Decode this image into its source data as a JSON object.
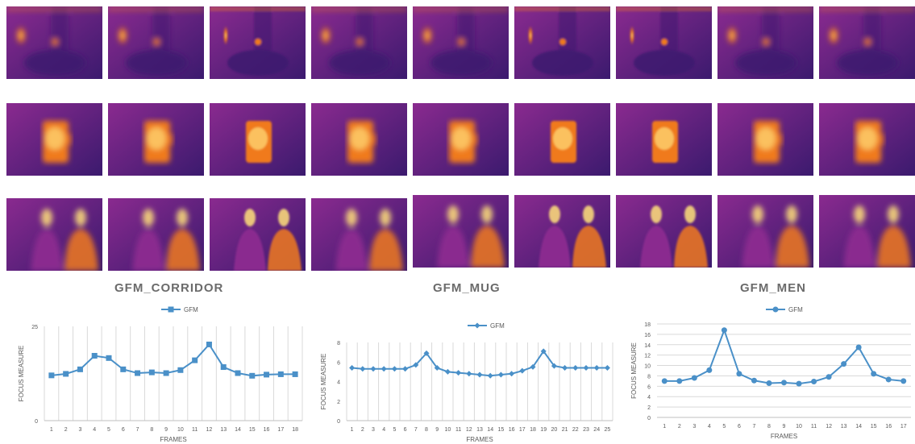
{
  "thermal_rows": [
    {
      "name": "corridor",
      "frames": 9
    },
    {
      "name": "mug",
      "frames": 9
    },
    {
      "name": "men",
      "frames": 9
    }
  ],
  "palette": {
    "background_dark": "#3b1a6e",
    "background_mid": "#8a2a8f",
    "hot": "#f07a1c",
    "hottest": "#ffe07a"
  },
  "series_color": "#4a90c8",
  "chart_data": [
    {
      "type": "line",
      "title": "GFM_CORRIDOR",
      "legend": [
        "GFM"
      ],
      "legend_position": "top",
      "marker": "square",
      "xlabel": "FRAMES",
      "ylabel": "FOCUS MEASURE",
      "categories": [
        "1",
        "2",
        "3",
        "4",
        "5",
        "6",
        "7",
        "8",
        "9",
        "10",
        "11",
        "12",
        "13",
        "14",
        "15",
        "16",
        "17",
        "18"
      ],
      "series": [
        {
          "name": "GFM",
          "values": [
            12,
            12.4,
            13.6,
            17.2,
            16.6,
            13.6,
            12.6,
            12.8,
            12.6,
            13.4,
            16,
            20.2,
            14.2,
            12.6,
            11.9,
            12.2,
            12.3,
            12.3
          ]
        }
      ],
      "ylim": [
        0,
        25
      ],
      "yticks": [
        "0",
        "25"
      ],
      "grid": "vertical"
    },
    {
      "type": "line",
      "title": "GFM_MUG",
      "legend": [
        "GFM"
      ],
      "legend_position": "top",
      "marker": "diamond",
      "xlabel": "FRAMES",
      "ylabel": "FOCUS MEASURE",
      "categories": [
        "1",
        "2",
        "3",
        "4",
        "5",
        "6",
        "7",
        "8",
        "9",
        "10",
        "11",
        "12",
        "13",
        "14",
        "15",
        "16",
        "17",
        "18",
        "19",
        "20",
        "21",
        "22",
        "23",
        "24",
        "25"
      ],
      "series": [
        {
          "name": "GFM",
          "values": [
            5.4,
            5.3,
            5.3,
            5.3,
            5.3,
            5.3,
            5.7,
            6.9,
            5.4,
            5.0,
            4.9,
            4.8,
            4.7,
            4.6,
            4.7,
            4.8,
            5.1,
            5.5,
            7.1,
            5.6,
            5.4,
            5.4,
            5.4,
            5.4,
            5.4
          ]
        }
      ],
      "ylim": [
        0,
        8
      ],
      "yticks": [
        "0",
        "2",
        "4",
        "6",
        "8"
      ],
      "grid": "vertical"
    },
    {
      "type": "line",
      "title": "GFM_MEN",
      "legend": [
        "GFM"
      ],
      "legend_position": "top",
      "marker": "circle",
      "xlabel": "FRAMES",
      "ylabel": "FOCUS MEASURE",
      "categories": [
        "1",
        "2",
        "3",
        "4",
        "5",
        "6",
        "7",
        "8",
        "9",
        "10",
        "11",
        "12",
        "13",
        "14",
        "15",
        "16",
        "17"
      ],
      "series": [
        {
          "name": "GFM",
          "values": [
            7.0,
            7.0,
            7.6,
            9.1,
            16.8,
            8.4,
            7.1,
            6.6,
            6.7,
            6.5,
            6.9,
            7.8,
            10.3,
            13.5,
            8.4,
            7.3,
            7.0
          ]
        }
      ],
      "ylim": [
        0,
        18
      ],
      "yticks": [
        "0",
        "2",
        "4",
        "6",
        "8",
        "10",
        "12",
        "14",
        "16",
        "18"
      ],
      "grid": "horizontal"
    }
  ]
}
